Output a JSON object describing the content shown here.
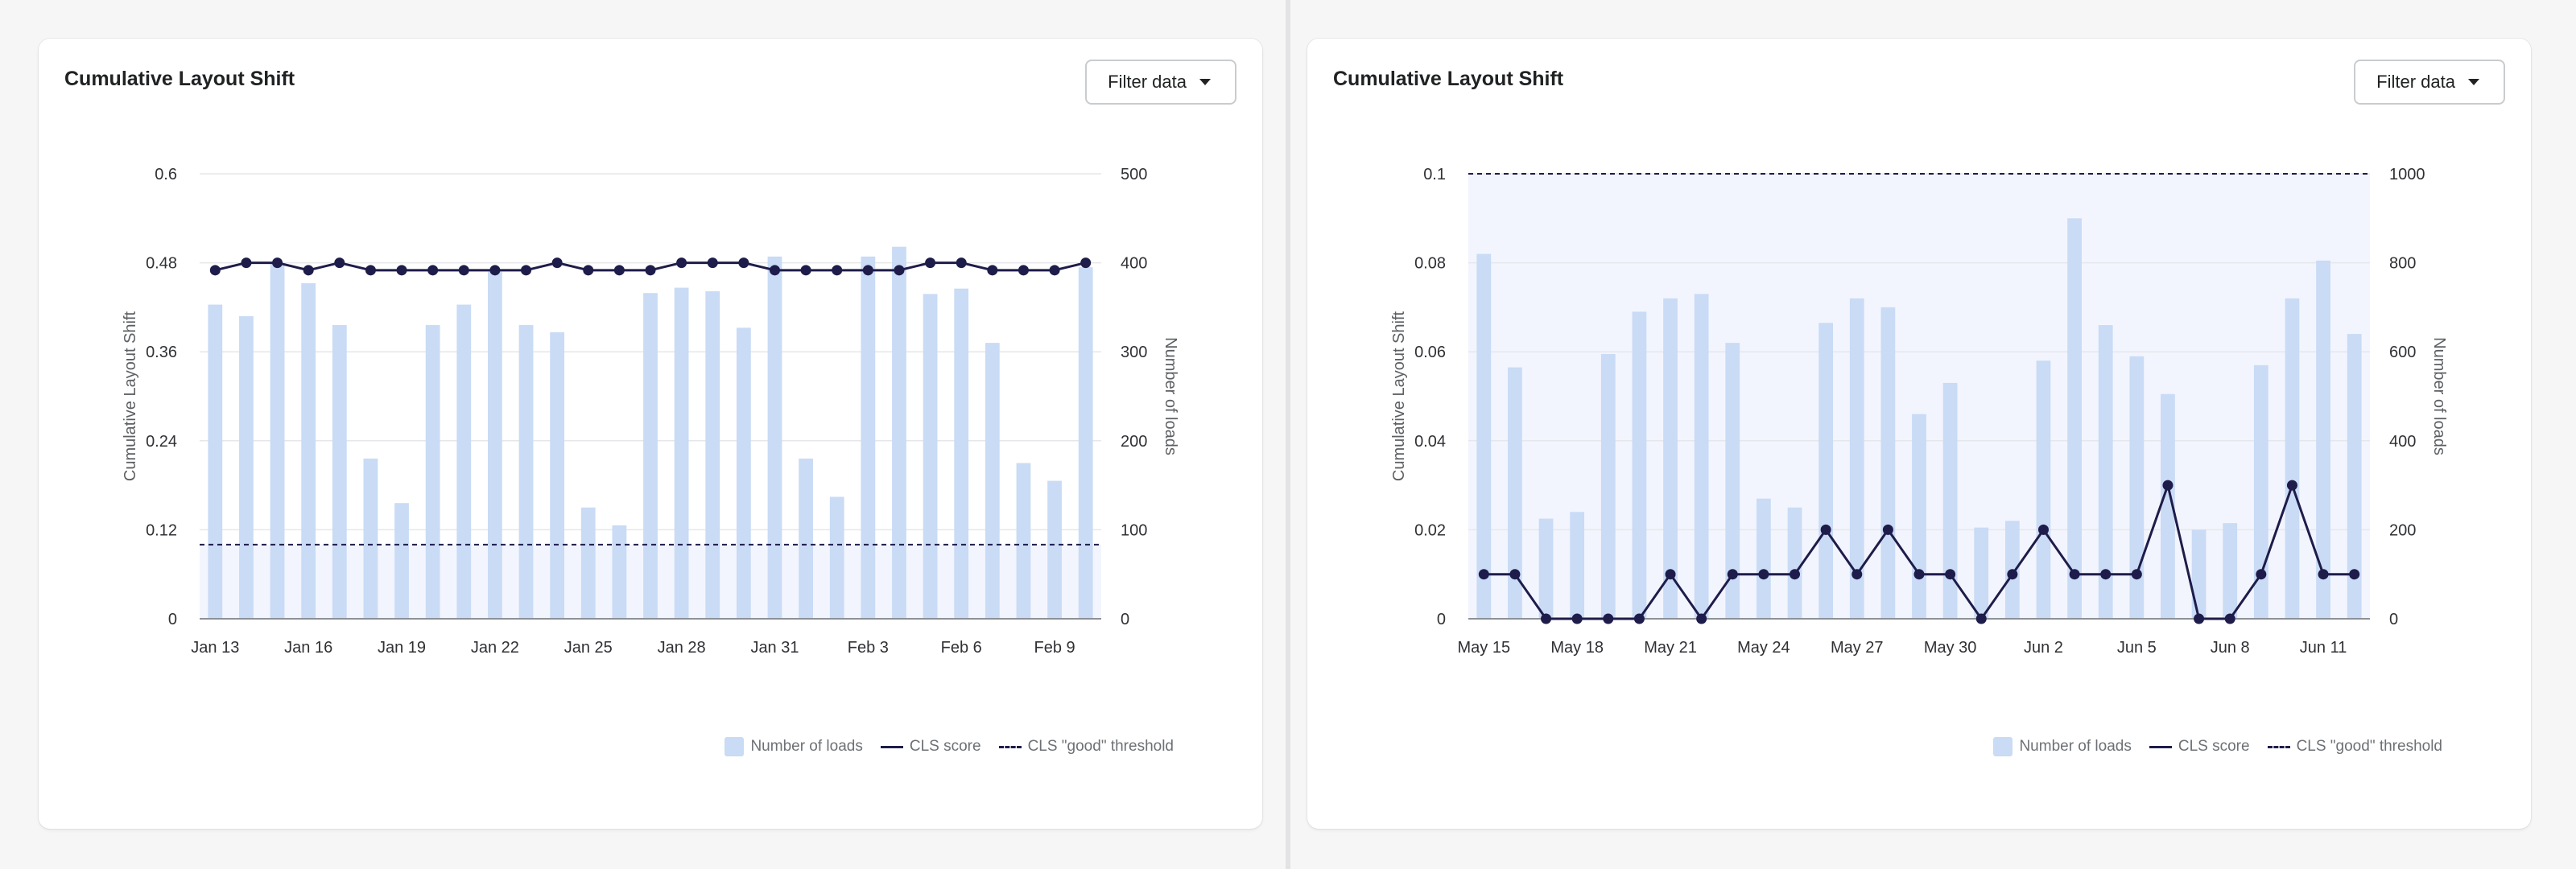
{
  "panels": [
    {
      "title": "Cumulative Layout Shift",
      "filter_label": "Filter data",
      "legend": {
        "loads": "Number of loads",
        "score": "CLS score",
        "threshold": "CLS \"good\" threshold"
      },
      "chart_data": {
        "type": "bar+line",
        "title": "Cumulative Layout Shift",
        "ylabel_left": "Cumulative Layout Shift",
        "ylabel_right": "Number of loads",
        "ylim_left": [
          0,
          0.6
        ],
        "ylim_right": [
          0,
          500
        ],
        "yticks_left": [
          "0",
          "0.12",
          "0.24",
          "0.36",
          "0.48",
          "0.6"
        ],
        "yticks_right": [
          "0",
          "100",
          "200",
          "300",
          "400",
          "500"
        ],
        "threshold": 0.1,
        "threshold_shaded": "below",
        "xtick_labels": [
          "Jan 13",
          "Jan 16",
          "Jan 19",
          "Jan 22",
          "Jan 25",
          "Jan 28",
          "Jan 31",
          "Feb 3",
          "Feb 6",
          "Feb 9"
        ],
        "categories": [
          "Jan 13",
          "Jan 14",
          "Jan 15",
          "Jan 16",
          "Jan 17",
          "Jan 18",
          "Jan 19",
          "Jan 20",
          "Jan 21",
          "Jan 22",
          "Jan 23",
          "Jan 24",
          "Jan 25",
          "Jan 26",
          "Jan 27",
          "Jan 28",
          "Jan 29",
          "Jan 30",
          "Jan 31",
          "Feb 1",
          "Feb 2",
          "Feb 3",
          "Feb 4",
          "Feb 5",
          "Feb 6",
          "Feb 7",
          "Feb 8",
          "Feb 9",
          "Feb 10"
        ],
        "series": [
          {
            "name": "Number of loads",
            "type": "bar",
            "axis": "right",
            "values": [
              353,
              340,
              400,
              377,
              330,
              180,
              130,
              330,
              353,
              390,
              330,
              322,
              125,
              105,
              366,
              372,
              368,
              327,
              407,
              180,
              137,
              407,
              418,
              365,
              371,
              310,
              175,
              155,
              395
            ]
          },
          {
            "name": "CLS score",
            "type": "line",
            "axis": "left",
            "values": [
              0.47,
              0.48,
              0.48,
              0.47,
              0.48,
              0.47,
              0.47,
              0.47,
              0.47,
              0.47,
              0.47,
              0.48,
              0.47,
              0.47,
              0.47,
              0.48,
              0.48,
              0.48,
              0.47,
              0.47,
              0.47,
              0.47,
              0.47,
              0.48,
              0.48,
              0.47,
              0.47,
              0.47,
              0.48
            ]
          }
        ]
      }
    },
    {
      "title": "Cumulative Layout Shift",
      "filter_label": "Filter data",
      "legend": {
        "loads": "Number of loads",
        "score": "CLS score",
        "threshold": "CLS \"good\" threshold"
      },
      "chart_data": {
        "type": "bar+line",
        "title": "Cumulative Layout Shift",
        "ylabel_left": "Cumulative Layout Shift",
        "ylabel_right": "Number of loads",
        "ylim_left": [
          0,
          0.1
        ],
        "ylim_right": [
          0,
          1000
        ],
        "yticks_left": [
          "0",
          "0.02",
          "0.04",
          "0.06",
          "0.08",
          "0.1"
        ],
        "yticks_right": [
          "0",
          "200",
          "400",
          "600",
          "800",
          "1000"
        ],
        "threshold": 0.1,
        "threshold_shaded": "below",
        "xtick_labels": [
          "May 15",
          "May 18",
          "May 21",
          "May 24",
          "May 27",
          "May 30",
          "Jun 2",
          "Jun 5",
          "Jun 8",
          "Jun 11"
        ],
        "categories": [
          "May 15",
          "May 16",
          "May 17",
          "May 18",
          "May 19",
          "May 20",
          "May 21",
          "May 22",
          "May 23",
          "May 24",
          "May 25",
          "May 26",
          "May 27",
          "May 28",
          "May 29",
          "May 30",
          "May 31",
          "Jun 1",
          "Jun 2",
          "Jun 3",
          "Jun 4",
          "Jun 5",
          "Jun 6",
          "Jun 7",
          "Jun 8",
          "Jun 9",
          "Jun 10",
          "Jun 11",
          "Jun 12"
        ],
        "series": [
          {
            "name": "Number of loads",
            "type": "bar",
            "axis": "right",
            "values": [
              820,
              565,
              225,
              240,
              595,
              690,
              720,
              730,
              620,
              270,
              250,
              665,
              720,
              700,
              460,
              530,
              205,
              220,
              580,
              900,
              660,
              590,
              505,
              200,
              215,
              570,
              720,
              805,
              640
            ]
          },
          {
            "name": "CLS score",
            "type": "line",
            "axis": "left",
            "values": [
              0.01,
              0.01,
              0,
              0,
              0,
              0,
              0.01,
              0,
              0.01,
              0.01,
              0.01,
              0.02,
              0.01,
              0.02,
              0.01,
              0.01,
              0,
              0.01,
              0.02,
              0.01,
              0.01,
              0.01,
              0.03,
              0,
              0,
              0.01,
              0.03,
              0.01,
              0.01
            ]
          }
        ]
      }
    }
  ],
  "colors": {
    "bar": "#c9dbf5",
    "line": "#1e1c4a",
    "band": "#f3f5fe",
    "grid": "#e6e7ea",
    "axis": "#8c9196",
    "text": "#303135"
  }
}
